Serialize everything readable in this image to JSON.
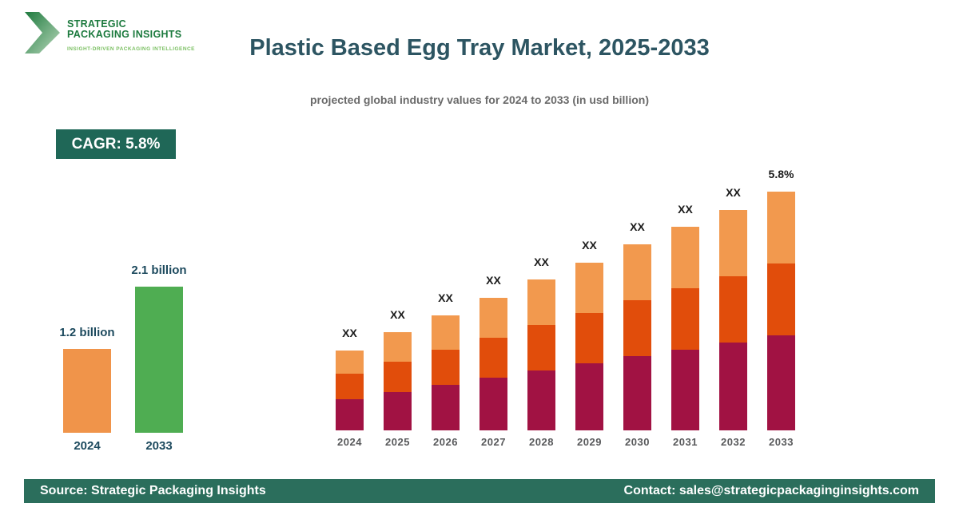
{
  "logo": {
    "line1": "STRATEGIC",
    "line2": "PACKAGING INSIGHTS",
    "tagline": "INSIGHT-DRIVEN PACKAGING INTELLIGENCE",
    "text_color": "#1C7A3E",
    "tagline_color": "#7CC063"
  },
  "header": {
    "title": "Plastic Based Egg Tray Market, 2025-2033",
    "subtitle": "projected global industry values for 2024 to 2033 (in usd billion)"
  },
  "cagr_badge": {
    "label": "CAGR: 5.8%",
    "bg_color": "#1F6757"
  },
  "chart_data": [
    {
      "type": "bar",
      "title": "market size summary",
      "categories": [
        "2024",
        "2033"
      ],
      "values": [
        1.2,
        2.1
      ],
      "value_labels": [
        "1.2 billion",
        "2.1 billion"
      ],
      "unit": "usd billion",
      "bar_colors": [
        "#F0944A",
        "#4FAD52"
      ],
      "ylim": [
        0,
        2.3
      ],
      "grid": false,
      "legend": false
    },
    {
      "type": "bar",
      "subtype": "stacked",
      "title": "projected values 2024-2033 (values masked)",
      "categories": [
        "2024",
        "2025",
        "2026",
        "2027",
        "2028",
        "2029",
        "2030",
        "2031",
        "2032",
        "2033"
      ],
      "series": [
        {
          "name": "segment-bottom",
          "color": "#A11243",
          "values": [
            39,
            48,
            57,
            66,
            75,
            84,
            93,
            101,
            110,
            119
          ]
        },
        {
          "name": "segment-middle",
          "color": "#E14D0B",
          "values": [
            32,
            38,
            44,
            50,
            57,
            63,
            70,
            77,
            83,
            90
          ]
        },
        {
          "name": "segment-top",
          "color": "#F2994E",
          "values": [
            29,
            37,
            43,
            50,
            57,
            63,
            70,
            77,
            83,
            90
          ]
        }
      ],
      "values_unit": "relative-height-px",
      "bar_labels": [
        "XX",
        "XX",
        "XX",
        "XX",
        "XX",
        "XX",
        "XX",
        "XX",
        "XX",
        "5.8%"
      ],
      "grid": false,
      "legend": false,
      "axes_hidden": true
    }
  ],
  "footer": {
    "source": "Source: Strategic Packaging Insights",
    "contact": "Contact: sales@strategicpackaginginsights.com",
    "bg_color": "#2B6E5C"
  }
}
